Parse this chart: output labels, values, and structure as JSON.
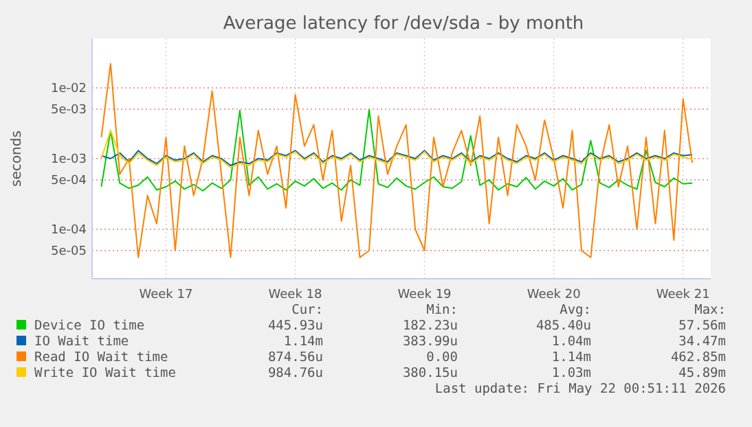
{
  "chart_data": {
    "type": "line",
    "title": "Average latency for /dev/sda - by month",
    "ylabel": "seconds",
    "log": "y",
    "grid": true,
    "legend": "bottom",
    "line_style": "solid",
    "x": [
      "2026-04-20T00:00",
      "2026-04-20T12:00",
      "2026-04-21T00:00",
      "2026-04-21T12:00",
      "2026-04-22T00:00",
      "2026-04-22T12:00",
      "2026-04-23T00:00",
      "2026-04-23T12:00",
      "2026-04-24T00:00",
      "2026-04-24T12:00",
      "2026-04-25T00:00",
      "2026-04-25T12:00",
      "2026-04-26T00:00",
      "2026-04-26T12:00",
      "2026-04-27T00:00",
      "2026-04-27T12:00",
      "2026-04-28T00:00",
      "2026-04-28T12:00",
      "2026-04-29T00:00",
      "2026-04-29T12:00",
      "2026-04-30T00:00",
      "2026-04-30T12:00",
      "2026-05-01T00:00",
      "2026-05-01T12:00",
      "2026-05-02T00:00",
      "2026-05-02T12:00",
      "2026-05-03T00:00",
      "2026-05-03T12:00",
      "2026-05-04T00:00",
      "2026-05-04T12:00",
      "2026-05-05T00:00",
      "2026-05-05T12:00",
      "2026-05-06T00:00",
      "2026-05-06T12:00",
      "2026-05-07T00:00",
      "2026-05-07T12:00",
      "2026-05-08T00:00",
      "2026-05-08T12:00",
      "2026-05-09T00:00",
      "2026-05-09T12:00",
      "2026-05-10T00:00",
      "2026-05-10T12:00",
      "2026-05-11T00:00",
      "2026-05-11T12:00",
      "2026-05-12T00:00",
      "2026-05-12T12:00",
      "2026-05-13T00:00",
      "2026-05-13T12:00",
      "2026-05-14T00:00",
      "2026-05-14T12:00",
      "2026-05-15T00:00",
      "2026-05-15T12:00",
      "2026-05-16T00:00",
      "2026-05-16T12:00",
      "2026-05-17T00:00",
      "2026-05-17T12:00",
      "2026-05-18T00:00",
      "2026-05-18T12:00",
      "2026-05-19T00:00",
      "2026-05-19T12:00",
      "2026-05-20T00:00",
      "2026-05-20T12:00",
      "2026-05-21T00:00",
      "2026-05-21T12:00",
      "2026-05-22T00:00"
    ],
    "xlim": [
      "2026-04-19T12:00",
      "2026-05-23T00:00"
    ],
    "xticks": [
      {
        "value": "2026-04-23T12:00",
        "label": "Week 17"
      },
      {
        "value": "2026-04-30T12:00",
        "label": "Week 18"
      },
      {
        "value": "2026-05-07T12:00",
        "label": "Week 19"
      },
      {
        "value": "2026-05-14T12:00",
        "label": "Week 20"
      },
      {
        "value": "2026-05-21T12:00",
        "label": "Week 21"
      }
    ],
    "ylim": [
      2e-05,
      0.05
    ],
    "yticks": [
      {
        "value": 5e-05,
        "label": "5e-05"
      },
      {
        "value": 0.0001,
        "label": "1e-04"
      },
      {
        "value": 0.0005,
        "label": "5e-04"
      },
      {
        "value": 0.001,
        "label": "1e-03"
      },
      {
        "value": 0.005,
        "label": "5e-03"
      },
      {
        "value": 0.01,
        "label": "1e-02"
      }
    ],
    "series": [
      {
        "name": "Device IO time",
        "color": "#00cc00",
        "values": [
          0.0004,
          0.0025,
          0.00045,
          0.00038,
          0.00042,
          0.00055,
          0.00036,
          0.0004,
          0.00048,
          0.00037,
          0.00043,
          0.00035,
          0.00045,
          0.00038,
          0.0005,
          0.0048,
          0.00042,
          0.00055,
          0.00037,
          0.00044,
          0.00036,
          0.00048,
          0.00041,
          0.00052,
          0.00038,
          0.00045,
          0.00036,
          0.0005,
          0.00042,
          0.0049,
          0.00044,
          0.00039,
          0.00053,
          0.00041,
          0.00037,
          0.00046,
          0.00055,
          0.0004,
          0.00038,
          0.00047,
          0.0021,
          0.00042,
          0.0005,
          0.00036,
          0.00044,
          0.0004,
          0.00054,
          0.00037,
          0.00048,
          0.00041,
          0.00052,
          0.00036,
          0.00043,
          0.0018,
          0.00045,
          0.00039,
          0.0005,
          0.00042,
          0.00037,
          0.0013,
          0.00046,
          0.0004,
          0.00053,
          0.00044,
          0.00045
        ]
      },
      {
        "name": "IO Wait time",
        "color": "#0066b3",
        "values": [
          0.0011,
          0.001,
          0.0012,
          0.0009,
          0.0013,
          0.001,
          0.00085,
          0.0011,
          0.00095,
          0.001,
          0.0012,
          0.0009,
          0.0011,
          0.001,
          0.0008,
          0.0009,
          0.00085,
          0.001,
          0.00095,
          0.0012,
          0.0011,
          0.0013,
          0.001,
          0.0012,
          0.0009,
          0.0011,
          0.001,
          0.0012,
          0.00095,
          0.0011,
          0.001,
          0.0009,
          0.0012,
          0.0011,
          0.001,
          0.0013,
          0.00095,
          0.0011,
          0.001,
          0.0012,
          0.0009,
          0.0011,
          0.001,
          0.0012,
          0.001,
          0.0009,
          0.0011,
          0.001,
          0.0012,
          0.00095,
          0.0011,
          0.001,
          0.0009,
          0.0012,
          0.001,
          0.0011,
          0.0009,
          0.001,
          0.0012,
          0.001,
          0.0011,
          0.001,
          0.0012,
          0.0011,
          0.00114
        ]
      },
      {
        "name": "Read IO Wait time",
        "color": "#ff8000",
        "values": [
          0.002,
          0.022,
          0.0006,
          0.001,
          4e-05,
          0.0003,
          0.00012,
          0.002,
          5e-05,
          0.0015,
          0.0003,
          0.001,
          0.009,
          0.0006,
          4e-05,
          0.002,
          0.0003,
          0.0025,
          0.0006,
          0.0015,
          0.0002,
          0.008,
          0.0015,
          0.003,
          0.0005,
          0.0025,
          0.00013,
          0.0008,
          4e-05,
          5e-05,
          0.004,
          0.0006,
          0.0015,
          0.003,
          0.0001,
          5e-05,
          0.002,
          0.0004,
          0.0012,
          0.0025,
          0.0008,
          0.004,
          0.00012,
          0.002,
          0.0003,
          0.003,
          0.0015,
          0.0005,
          0.0035,
          0.001,
          0.0002,
          0.0025,
          5e-05,
          4e-05,
          0.0008,
          0.003,
          0.0004,
          0.0015,
          0.0001,
          0.002,
          0.00012,
          0.0025,
          7e-05,
          0.007,
          0.00087
        ]
      },
      {
        "name": "Write IO Wait time",
        "color": "#ffcc00",
        "values": [
          0.001,
          0.0025,
          0.0011,
          0.00085,
          0.0012,
          0.00095,
          0.0008,
          0.00105,
          0.0009,
          0.00095,
          0.00115,
          0.00085,
          0.00105,
          0.00095,
          0.00075,
          0.00085,
          0.0008,
          0.00095,
          0.0009,
          0.00115,
          0.00105,
          0.00125,
          0.00095,
          0.00115,
          0.00085,
          0.00105,
          0.00095,
          0.00115,
          0.0009,
          0.00105,
          0.00095,
          0.00085,
          0.00115,
          0.00105,
          0.00095,
          0.00125,
          0.0009,
          0.00105,
          0.00095,
          0.00115,
          0.00085,
          0.00105,
          0.00095,
          0.00115,
          0.00095,
          0.00085,
          0.00105,
          0.00095,
          0.00115,
          0.0009,
          0.00105,
          0.00095,
          0.00085,
          0.00115,
          0.00095,
          0.00105,
          0.00085,
          0.00095,
          0.00115,
          0.00095,
          0.00105,
          0.00095,
          0.00115,
          0.00105,
          0.00098
        ]
      }
    ],
    "annotations": [
      "Cur:",
      "Min:",
      "Avg:",
      "Max:",
      "445.93u",
      "182.23u",
      "485.40u",
      "57.56m",
      "1.14m",
      "383.99u",
      "1.04m",
      "34.47m",
      "874.56u",
      "0.00",
      "1.14m",
      "462.85m",
      "984.76u",
      "380.15u",
      "1.03m",
      "45.89m",
      "Last update: Fri May 22 00:51:11 2026"
    ]
  }
}
